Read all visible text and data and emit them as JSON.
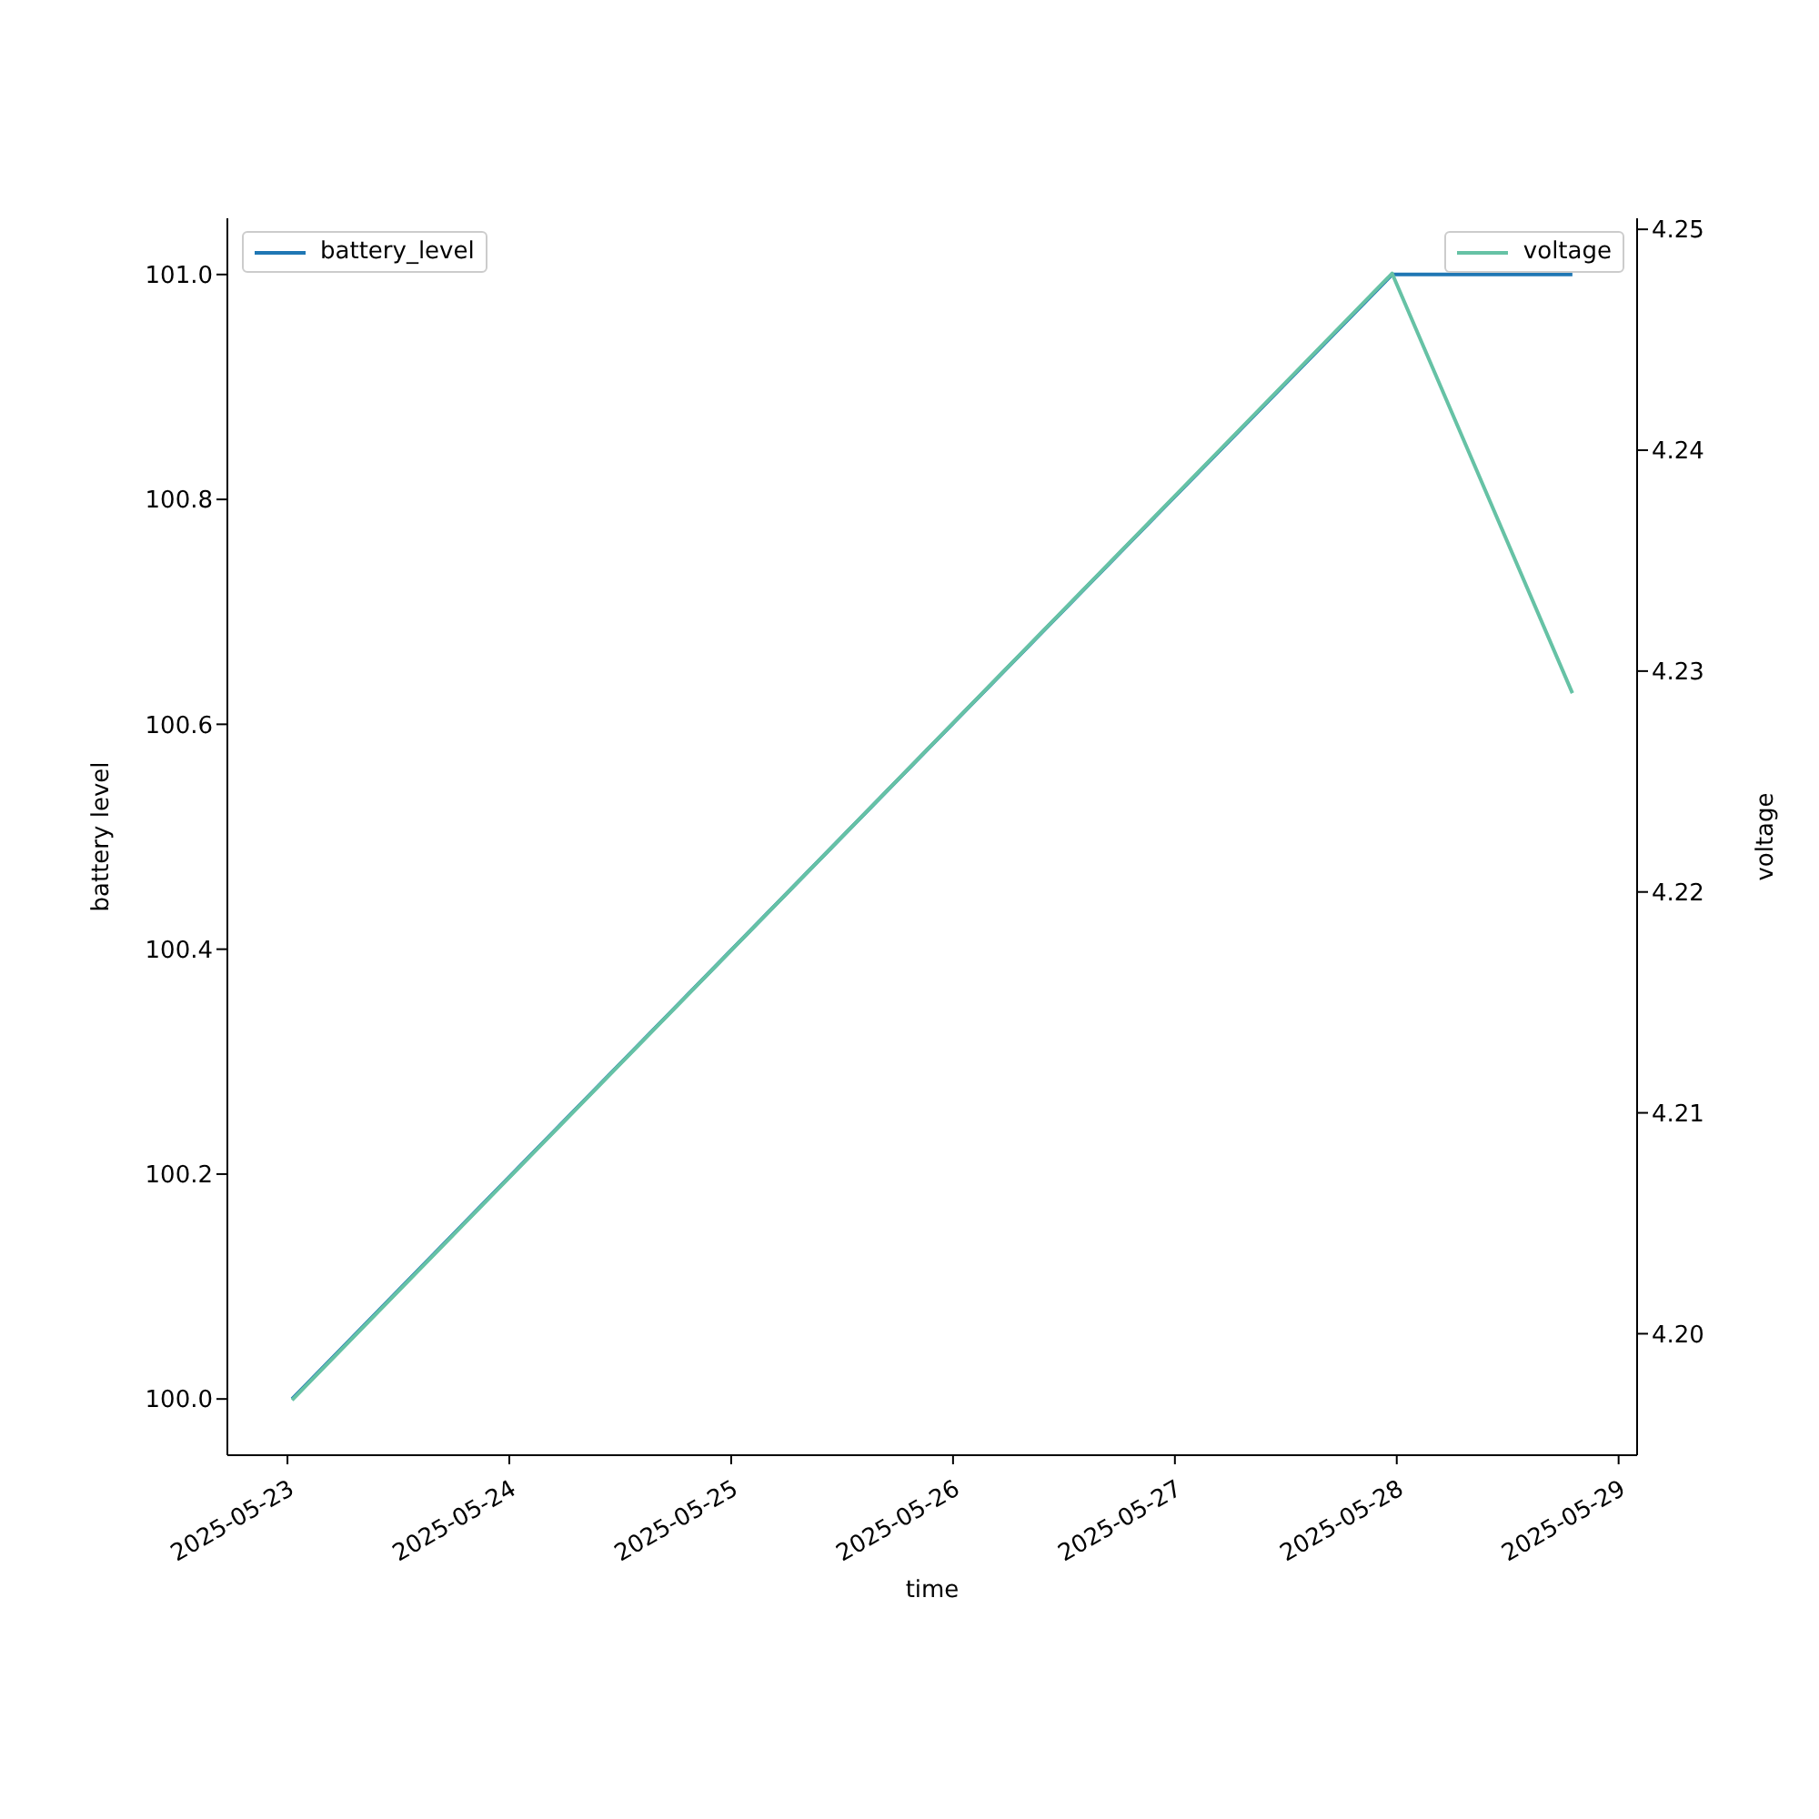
{
  "chart_data": {
    "type": "line",
    "xlabel": "time",
    "ylabel": "battery level",
    "y2label": "voltage",
    "xlim": [
      "2025-05-22T17:30",
      "2025-05-29T02:00"
    ],
    "xticks": [
      "2025-05-23",
      "2025-05-24",
      "2025-05-25",
      "2025-05-26",
      "2025-05-27",
      "2025-05-28",
      "2025-05-29"
    ],
    "ylim": [
      99.95,
      101.05
    ],
    "yticks": [
      {
        "value": 100,
        "label": "100.0"
      },
      {
        "value": 100.2,
        "label": "100.2"
      },
      {
        "value": 100.4,
        "label": "100.4"
      },
      {
        "value": 100.6,
        "label": "100.6"
      },
      {
        "value": 100.8,
        "label": "100.8"
      },
      {
        "value": 101,
        "label": "101.0"
      }
    ],
    "y2lim": [
      4.1945,
      4.2505
    ],
    "y2ticks": [
      {
        "value": 4.2,
        "label": "4.20"
      },
      {
        "value": 4.21,
        "label": "4.21"
      },
      {
        "value": 4.22,
        "label": "4.22"
      },
      {
        "value": 4.23,
        "label": "4.23"
      },
      {
        "value": 4.24,
        "label": "4.24"
      },
      {
        "value": 4.25,
        "label": "4.25"
      }
    ],
    "legend": "top",
    "grid": false,
    "series": [
      {
        "name": "battery_level",
        "color": "#1f77b4",
        "x": [
          "2025-05-23T00:30",
          "2025-05-27T23:30",
          "2025-05-28T19:00"
        ],
        "values": [
          100.0,
          101.0,
          101.0
        ]
      },
      {
        "name": "voltage",
        "color": "#66c2a5",
        "axis": "y2",
        "x": [
          "2025-05-23T00:30",
          "2025-05-27T23:30",
          "2025-05-28T19:00"
        ],
        "values": [
          4.197,
          4.248,
          4.229
        ]
      }
    ]
  }
}
